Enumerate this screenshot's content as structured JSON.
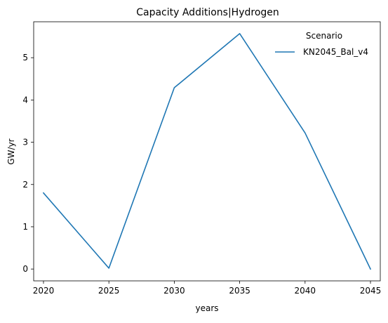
{
  "chart_data": {
    "type": "line",
    "title": "Capacity Additions|Hydrogen",
    "xlabel": "years",
    "ylabel": "GW/yr",
    "x": [
      2020,
      2025,
      2030,
      2035,
      2040,
      2045
    ],
    "series": [
      {
        "name": "KN2045_Bal_v4",
        "values": [
          1.8,
          0.02,
          4.29,
          5.57,
          3.22,
          0.0
        ],
        "color": "#1f77b4"
      }
    ],
    "xlim": [
      2019.25,
      2045.75
    ],
    "ylim": [
      -0.28,
      5.85
    ],
    "x_ticks": [
      2020,
      2025,
      2030,
      2035,
      2040,
      2045
    ],
    "y_ticks": [
      0,
      1,
      2,
      3,
      4,
      5
    ],
    "legend": {
      "title": "Scenario",
      "placement": "top-right"
    },
    "grid": false
  }
}
